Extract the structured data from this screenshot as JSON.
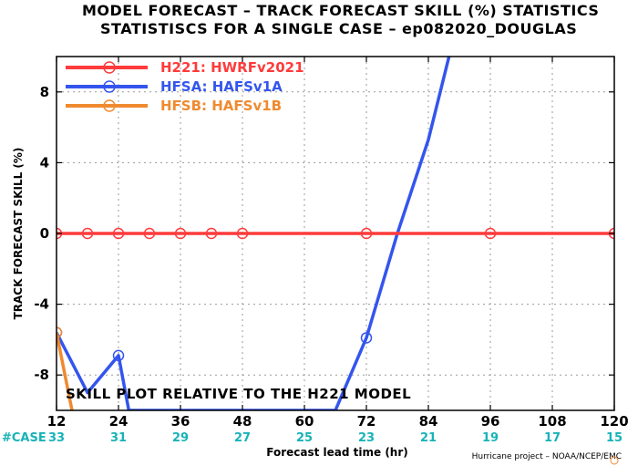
{
  "chart_data": {
    "type": "line",
    "title": "MODEL FORECAST – TRACK FORECAST SKILL (%) STATISTICS",
    "subtitle": "STATISTISCS FOR A SINGLE CASE – ep082020_DOUGLAS",
    "xlabel": "Forecast lead time (hr)",
    "ylabel": "TRACK FORECAST SKILL (%)",
    "xlim": [
      12,
      120
    ],
    "ylim": [
      -10,
      10
    ],
    "x_ticks": [
      "12",
      "24",
      "36",
      "48",
      "60",
      "72",
      "84",
      "96",
      "108",
      "120"
    ],
    "y_ticks": [
      "-8",
      "-4",
      "0",
      "4",
      "8"
    ],
    "grid": true,
    "legend_position": "top-left",
    "case_label": "#CASE",
    "case_counts": [
      {
        "x": 12,
        "n": "33"
      },
      {
        "x": 24,
        "n": "31"
      },
      {
        "x": 36,
        "n": "29"
      },
      {
        "x": 48,
        "n": "27"
      },
      {
        "x": 60,
        "n": "25"
      },
      {
        "x": 72,
        "n": "23"
      },
      {
        "x": 84,
        "n": "21"
      },
      {
        "x": 96,
        "n": "19"
      },
      {
        "x": 108,
        "n": "17"
      },
      {
        "x": 120,
        "n": "15"
      }
    ],
    "annotation": "SKILL PLOT RELATIVE TO THE H221 MODEL",
    "credit": "Hurricane project – NOAA/NCEP/EMC",
    "series": [
      {
        "name": "H221: HWRFv2021",
        "color": "#ff3b3b",
        "points": [
          [
            12,
            0
          ],
          [
            18,
            0
          ],
          [
            24,
            0
          ],
          [
            30,
            0
          ],
          [
            36,
            0
          ],
          [
            42,
            0
          ],
          [
            48,
            0
          ],
          [
            72,
            0
          ],
          [
            96,
            0
          ],
          [
            120,
            0
          ]
        ],
        "markers": [
          [
            12,
            0
          ],
          [
            18,
            0
          ],
          [
            24,
            0
          ],
          [
            30,
            0
          ],
          [
            36,
            0
          ],
          [
            42,
            0
          ],
          [
            48,
            0
          ],
          [
            72,
            0
          ],
          [
            96,
            0
          ],
          [
            120,
            0
          ]
        ]
      },
      {
        "name": "HFSA: HAFSv1A",
        "color": "#3355ee",
        "points": [
          [
            12,
            -5.6
          ],
          [
            18,
            -9.0
          ],
          [
            24,
            -6.9
          ],
          [
            26,
            -10.0
          ],
          [
            66,
            -10.0
          ],
          [
            72,
            -5.9
          ],
          [
            78,
            0
          ],
          [
            84,
            5.3
          ],
          [
            88,
            10.0
          ]
        ],
        "markers": [
          [
            12,
            -5.6
          ],
          [
            24,
            -6.9
          ],
          [
            72,
            -5.9
          ]
        ]
      },
      {
        "name": "HFSB: HAFSv1B",
        "color": "#f08a30",
        "points": [
          [
            12,
            -5.6
          ],
          [
            15,
            -10.0
          ]
        ],
        "markers": [
          [
            12,
            -5.6
          ]
        ]
      }
    ]
  }
}
